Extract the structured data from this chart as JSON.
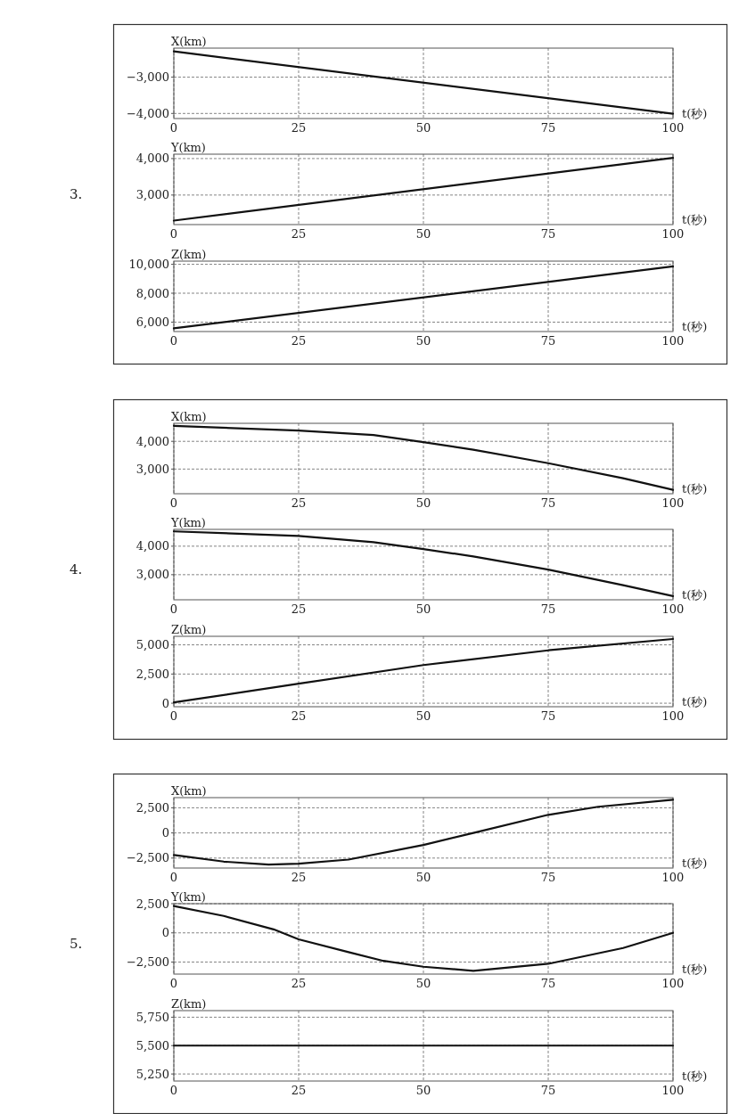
{
  "chart_data": [
    {
      "type": "line",
      "ylabel": "X(km)",
      "xlabel": "t(秒)",
      "annotations": [
        "3."
      ],
      "xlim": [
        0,
        100
      ],
      "xticks": [
        0,
        25,
        50,
        75,
        100
      ],
      "ylim": [
        -4140,
        -2200
      ],
      "yticks": [
        {
          "value": -3000,
          "label": "−3,000"
        },
        {
          "value": -4000,
          "label": "−4,000"
        }
      ],
      "grid": true,
      "line_style": "solid",
      "x": [
        0,
        100
      ],
      "series": [
        {
          "color": "#111111",
          "values": [
            -2290,
            -4010
          ]
        }
      ]
    },
    {
      "type": "line",
      "ylabel": "Y(km)",
      "xlabel": "t(秒)",
      "xlim": [
        0,
        100
      ],
      "xticks": [
        0,
        25,
        50,
        75,
        100
      ],
      "ylim": [
        2190,
        4120
      ],
      "yticks": [
        {
          "value": 3000,
          "label": "3,000"
        },
        {
          "value": 4000,
          "label": "4,000"
        }
      ],
      "grid": true,
      "line_style": "solid",
      "x": [
        0,
        100
      ],
      "series": [
        {
          "color": "#111111",
          "values": [
            2300,
            4020
          ]
        }
      ]
    },
    {
      "type": "line",
      "ylabel": "Z(km)",
      "xlabel": "t(秒)",
      "xlim": [
        0,
        100
      ],
      "xticks": [
        0,
        25,
        50,
        75,
        100
      ],
      "ylim": [
        5350,
        10220
      ],
      "yticks": [
        {
          "value": 6000,
          "label": "6,000"
        },
        {
          "value": 8000,
          "label": "8,000"
        },
        {
          "value": 10000,
          "label": "10,000"
        }
      ],
      "grid": true,
      "line_style": "solid",
      "x": [
        0,
        100
      ],
      "series": [
        {
          "color": "#111111",
          "values": [
            5570,
            9860
          ]
        }
      ]
    },
    {
      "type": "line",
      "ylabel": "X(km)",
      "xlabel": "t(秒)",
      "annotations": [
        "4."
      ],
      "xlim": [
        0,
        100
      ],
      "xticks": [
        0,
        25,
        50,
        75,
        100
      ],
      "ylim": [
        2110,
        4650
      ],
      "yticks": [
        {
          "value": 3000,
          "label": "3,000"
        },
        {
          "value": 4000,
          "label": "4,000"
        }
      ],
      "grid": true,
      "line_style": "solid",
      "x": [
        0,
        25,
        40,
        50,
        60,
        75,
        90,
        100
      ],
      "series": [
        {
          "color": "#111111",
          "values": [
            4560,
            4390,
            4230,
            3970,
            3700,
            3210,
            2670,
            2250
          ]
        }
      ]
    },
    {
      "type": "line",
      "ylabel": "Y(km)",
      "xlabel": "t(秒)",
      "xlim": [
        0,
        100
      ],
      "xticks": [
        0,
        25,
        50,
        75,
        100
      ],
      "ylim": [
        2120,
        4590
      ],
      "yticks": [
        {
          "value": 3000,
          "label": "3,000"
        },
        {
          "value": 4000,
          "label": "4,000"
        }
      ],
      "grid": true,
      "line_style": "solid",
      "x": [
        0,
        25,
        40,
        50,
        60,
        75,
        90,
        100
      ],
      "series": [
        {
          "color": "#111111",
          "values": [
            4520,
            4360,
            4140,
            3900,
            3640,
            3180,
            2630,
            2250
          ]
        }
      ]
    },
    {
      "type": "line",
      "ylabel": "Z(km)",
      "xlabel": "t(秒)",
      "xlim": [
        0,
        100
      ],
      "xticks": [
        0,
        25,
        50,
        75,
        100
      ],
      "ylim": [
        -300,
        5730
      ],
      "yticks": [
        {
          "value": 0,
          "label": "0"
        },
        {
          "value": 2500,
          "label": "2,500"
        },
        {
          "value": 5000,
          "label": "5,000"
        }
      ],
      "grid": true,
      "line_style": "solid",
      "x": [
        0,
        25,
        50,
        75,
        100
      ],
      "series": [
        {
          "color": "#111111",
          "values": [
            70,
            1670,
            3270,
            4530,
            5500
          ]
        }
      ]
    },
    {
      "type": "line",
      "ylabel": "X(km)",
      "xlabel": "t(秒)",
      "annotations": [
        "5."
      ],
      "xlim": [
        0,
        100
      ],
      "xticks": [
        0,
        25,
        50,
        75,
        100
      ],
      "ylim": [
        -3490,
        3510
      ],
      "yticks": [
        {
          "value": -2500,
          "label": "−2,500"
        },
        {
          "value": 0,
          "label": "0"
        },
        {
          "value": 2500,
          "label": "2,500"
        }
      ],
      "grid": true,
      "line_style": "solid",
      "x": [
        0,
        10,
        19,
        25,
        35,
        50,
        60,
        75,
        85,
        100
      ],
      "series": [
        {
          "color": "#111111",
          "values": [
            -2200,
            -2850,
            -3150,
            -3050,
            -2650,
            -1200,
            0,
            1800,
            2600,
            3300
          ]
        }
      ]
    },
    {
      "type": "line",
      "ylabel": "Y(km)",
      "xlabel": "t(秒)",
      "xlim": [
        0,
        100
      ],
      "xticks": [
        0,
        25,
        50,
        75,
        100
      ],
      "ylim": [
        -3530,
        2500
      ],
      "yticks": [
        {
          "value": -2500,
          "label": "−2,500"
        },
        {
          "value": 0,
          "label": "0"
        },
        {
          "value": 2500,
          "label": "2,500"
        }
      ],
      "grid": true,
      "line_style": "solid",
      "x": [
        0,
        10,
        20,
        25,
        35,
        42,
        50,
        60,
        75,
        90,
        100
      ],
      "series": [
        {
          "color": "#111111",
          "values": [
            2300,
            1450,
            300,
            -550,
            -1650,
            -2400,
            -2900,
            -3250,
            -2650,
            -1300,
            0
          ]
        }
      ]
    },
    {
      "type": "line",
      "ylabel": "Z(km)",
      "xlabel": "t(秒)",
      "xlim": [
        0,
        100
      ],
      "xticks": [
        0,
        25,
        50,
        75,
        100
      ],
      "ylim": [
        5188,
        5808
      ],
      "yticks": [
        {
          "value": 5250,
          "label": "5,250"
        },
        {
          "value": 5500,
          "label": "5,500"
        },
        {
          "value": 5750,
          "label": "5,750"
        }
      ],
      "grid": true,
      "line_style": "solid",
      "x": [
        0,
        100
      ],
      "series": [
        {
          "color": "#111111",
          "values": [
            5500,
            5500
          ]
        }
      ]
    }
  ]
}
